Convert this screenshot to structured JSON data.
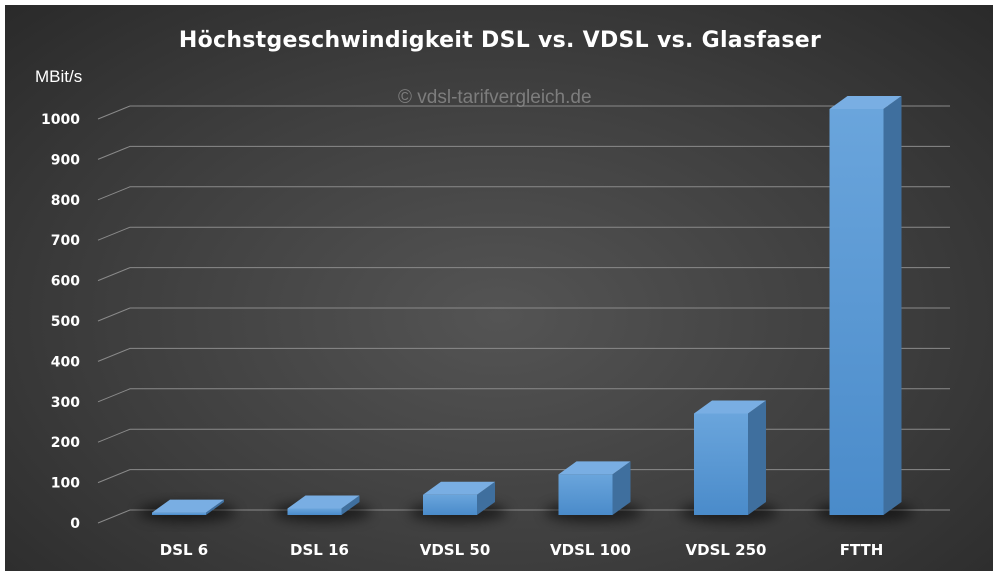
{
  "chart_data": {
    "type": "bar",
    "title": "Höchstgeschwindigkeit DSL vs. VDSL vs. Glasfaser",
    "ylabel": "MBit/s",
    "watermark": "© vdsl-tarifvergleich.de",
    "categories": [
      "DSL 6",
      "DSL 16",
      "VDSL 50",
      "VDSL 100",
      "VDSL 250",
      "FTTH"
    ],
    "values": [
      6,
      16,
      50,
      100,
      250,
      1000
    ],
    "ylim": [
      0,
      1000
    ],
    "yticks": [
      0,
      100,
      200,
      300,
      400,
      500,
      600,
      700,
      800,
      900,
      1000
    ],
    "grid": true,
    "three_d": true,
    "colors": {
      "bar_front": "#5b9bd5",
      "bar_top": "#79aee3",
      "bar_side": "#3f6f9e",
      "background": "#444444"
    }
  }
}
